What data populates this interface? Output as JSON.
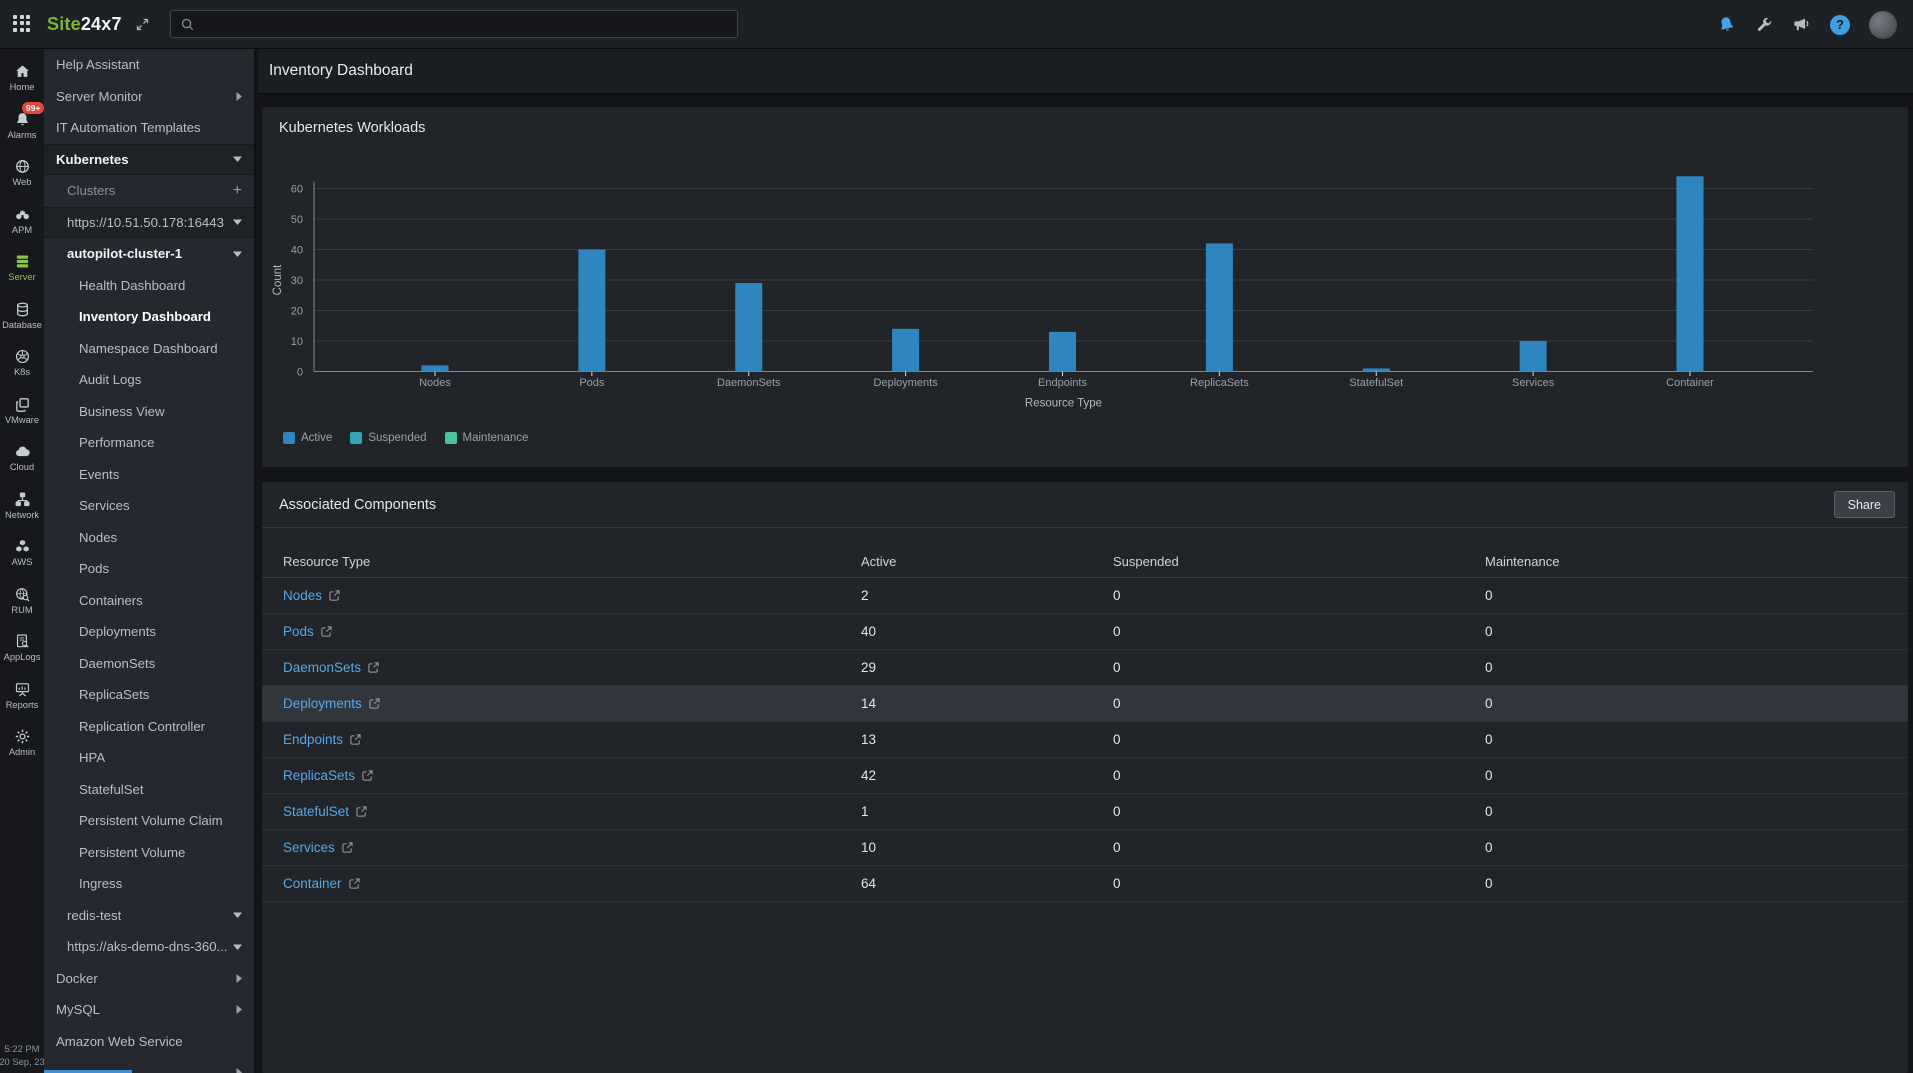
{
  "topbar": {
    "logo_site": "Site",
    "logo_rest": "24x7",
    "search_placeholder": "",
    "right_icons": [
      "notifications-bell",
      "tools-wrench",
      "announcements-megaphone",
      "help",
      "user-avatar"
    ]
  },
  "rail": {
    "items": [
      {
        "label": "Home",
        "icon": "home"
      },
      {
        "label": "Alarms",
        "icon": "bell",
        "badge": "99+"
      },
      {
        "label": "Web",
        "icon": "globe"
      },
      {
        "label": "APM",
        "icon": "binoculars"
      },
      {
        "label": "Server",
        "icon": "server",
        "active": true
      },
      {
        "label": "Database",
        "icon": "database"
      },
      {
        "label": "K8s",
        "icon": "kubernetes"
      },
      {
        "label": "VMware",
        "icon": "vmware"
      },
      {
        "label": "Cloud",
        "icon": "cloud"
      },
      {
        "label": "Network",
        "icon": "network"
      },
      {
        "label": "AWS",
        "icon": "aws"
      },
      {
        "label": "RUM",
        "icon": "rum"
      },
      {
        "label": "AppLogs",
        "icon": "applogs"
      },
      {
        "label": "Reports",
        "icon": "reports"
      },
      {
        "label": "Admin",
        "icon": "admin"
      }
    ],
    "footer": {
      "time": "5:22 PM",
      "date": "20 Sep, 23"
    }
  },
  "sidebar": {
    "items": [
      {
        "label": "Help Assistant",
        "level": 0
      },
      {
        "label": "Server Monitor",
        "level": 0,
        "chevron": "right"
      },
      {
        "label": "IT Automation Templates",
        "level": 0
      },
      {
        "label": "Kubernetes",
        "level": 0,
        "chevron": "down",
        "bold": true,
        "shaded": true
      },
      {
        "label": "Clusters",
        "level": 1,
        "chevron": "plus",
        "muted": true
      },
      {
        "label": "https://10.51.50.178:16443",
        "level": 1,
        "chevron": "down",
        "shaded": true
      },
      {
        "label": "autopilot-cluster-1",
        "level": 1,
        "chevron": "down",
        "bold": true
      },
      {
        "label": "Health Dashboard",
        "level": 2
      },
      {
        "label": "Inventory Dashboard",
        "level": 2,
        "selected": true
      },
      {
        "label": "Namespace Dashboard",
        "level": 2
      },
      {
        "label": "Audit Logs",
        "level": 2
      },
      {
        "label": "Business View",
        "level": 2
      },
      {
        "label": "Performance",
        "level": 2
      },
      {
        "label": "Events",
        "level": 2
      },
      {
        "label": "Services",
        "level": 2
      },
      {
        "label": "Nodes",
        "level": 2
      },
      {
        "label": "Pods",
        "level": 2
      },
      {
        "label": "Containers",
        "level": 2
      },
      {
        "label": "Deployments",
        "level": 2
      },
      {
        "label": "DaemonSets",
        "level": 2
      },
      {
        "label": "ReplicaSets",
        "level": 2
      },
      {
        "label": "Replication Controller",
        "level": 2
      },
      {
        "label": "HPA",
        "level": 2
      },
      {
        "label": "StatefulSet",
        "level": 2
      },
      {
        "label": "Persistent Volume Claim",
        "level": 2
      },
      {
        "label": "Persistent Volume",
        "level": 2
      },
      {
        "label": "Ingress",
        "level": 2
      },
      {
        "label": "redis-test",
        "level": 1,
        "chevron": "down"
      },
      {
        "label": "https://aks-demo-dns-360...",
        "level": 1,
        "chevron": "down"
      },
      {
        "label": "Docker",
        "level": 0,
        "chevron": "right"
      },
      {
        "label": "MySQL",
        "level": 0,
        "chevron": "right"
      },
      {
        "label": "Amazon Web Service",
        "level": 0
      },
      {
        "label": "",
        "level": 0,
        "chevron": "right",
        "partial": true
      }
    ]
  },
  "main": {
    "page_title": "Inventory Dashboard",
    "workloads_panel": {
      "title": "Kubernetes Workloads"
    },
    "components_panel": {
      "title": "Associated Components",
      "share_button": "Share",
      "table": {
        "headers": [
          "Resource Type",
          "Active",
          "Suspended",
          "Maintenance"
        ],
        "rows": [
          {
            "resource": "Nodes",
            "active": "2",
            "suspended": "0",
            "maintenance": "0"
          },
          {
            "resource": "Pods",
            "active": "40",
            "suspended": "0",
            "maintenance": "0"
          },
          {
            "resource": "DaemonSets",
            "active": "29",
            "suspended": "0",
            "maintenance": "0"
          },
          {
            "resource": "Deployments",
            "active": "14",
            "suspended": "0",
            "maintenance": "0",
            "highlighted": true
          },
          {
            "resource": "Endpoints",
            "active": "13",
            "suspended": "0",
            "maintenance": "0"
          },
          {
            "resource": "ReplicaSets",
            "active": "42",
            "suspended": "0",
            "maintenance": "0"
          },
          {
            "resource": "StatefulSet",
            "active": "1",
            "suspended": "0",
            "maintenance": "0"
          },
          {
            "resource": "Services",
            "active": "10",
            "suspended": "0",
            "maintenance": "0"
          },
          {
            "resource": "Container",
            "active": "64",
            "suspended": "0",
            "maintenance": "0"
          }
        ]
      }
    }
  },
  "chart_data": {
    "type": "bar",
    "title": "Kubernetes Workloads",
    "categories": [
      "Nodes",
      "Pods",
      "DaemonSets",
      "Deployments",
      "Endpoints",
      "ReplicaSets",
      "StatefulSet",
      "Services",
      "Container"
    ],
    "series": [
      {
        "name": "Active",
        "color": "#2f86bf",
        "values": [
          2,
          40,
          29,
          14,
          13,
          42,
          1,
          10,
          64
        ]
      },
      {
        "name": "Suspended",
        "color": "#35a4b6",
        "values": [
          0,
          0,
          0,
          0,
          0,
          0,
          0,
          0,
          0
        ]
      },
      {
        "name": "Maintenance",
        "color": "#4cc1a1",
        "values": [
          0,
          0,
          0,
          0,
          0,
          0,
          0,
          0,
          0
        ]
      }
    ],
    "xlabel": "Resource Type",
    "ylabel": "Count",
    "ylim": [
      0,
      65
    ],
    "yticks": [
      0,
      10,
      20,
      30,
      40,
      50,
      60
    ],
    "grid": true,
    "legend_position": "bottom-left"
  },
  "colors": {
    "link": "#55a9e8",
    "bar_active": "#2f86bf",
    "legend_suspended": "#35a4b6",
    "legend_maintenance": "#4cc1a1",
    "logo_green": "#7db43c",
    "alarm_badge": "#e3473d"
  }
}
